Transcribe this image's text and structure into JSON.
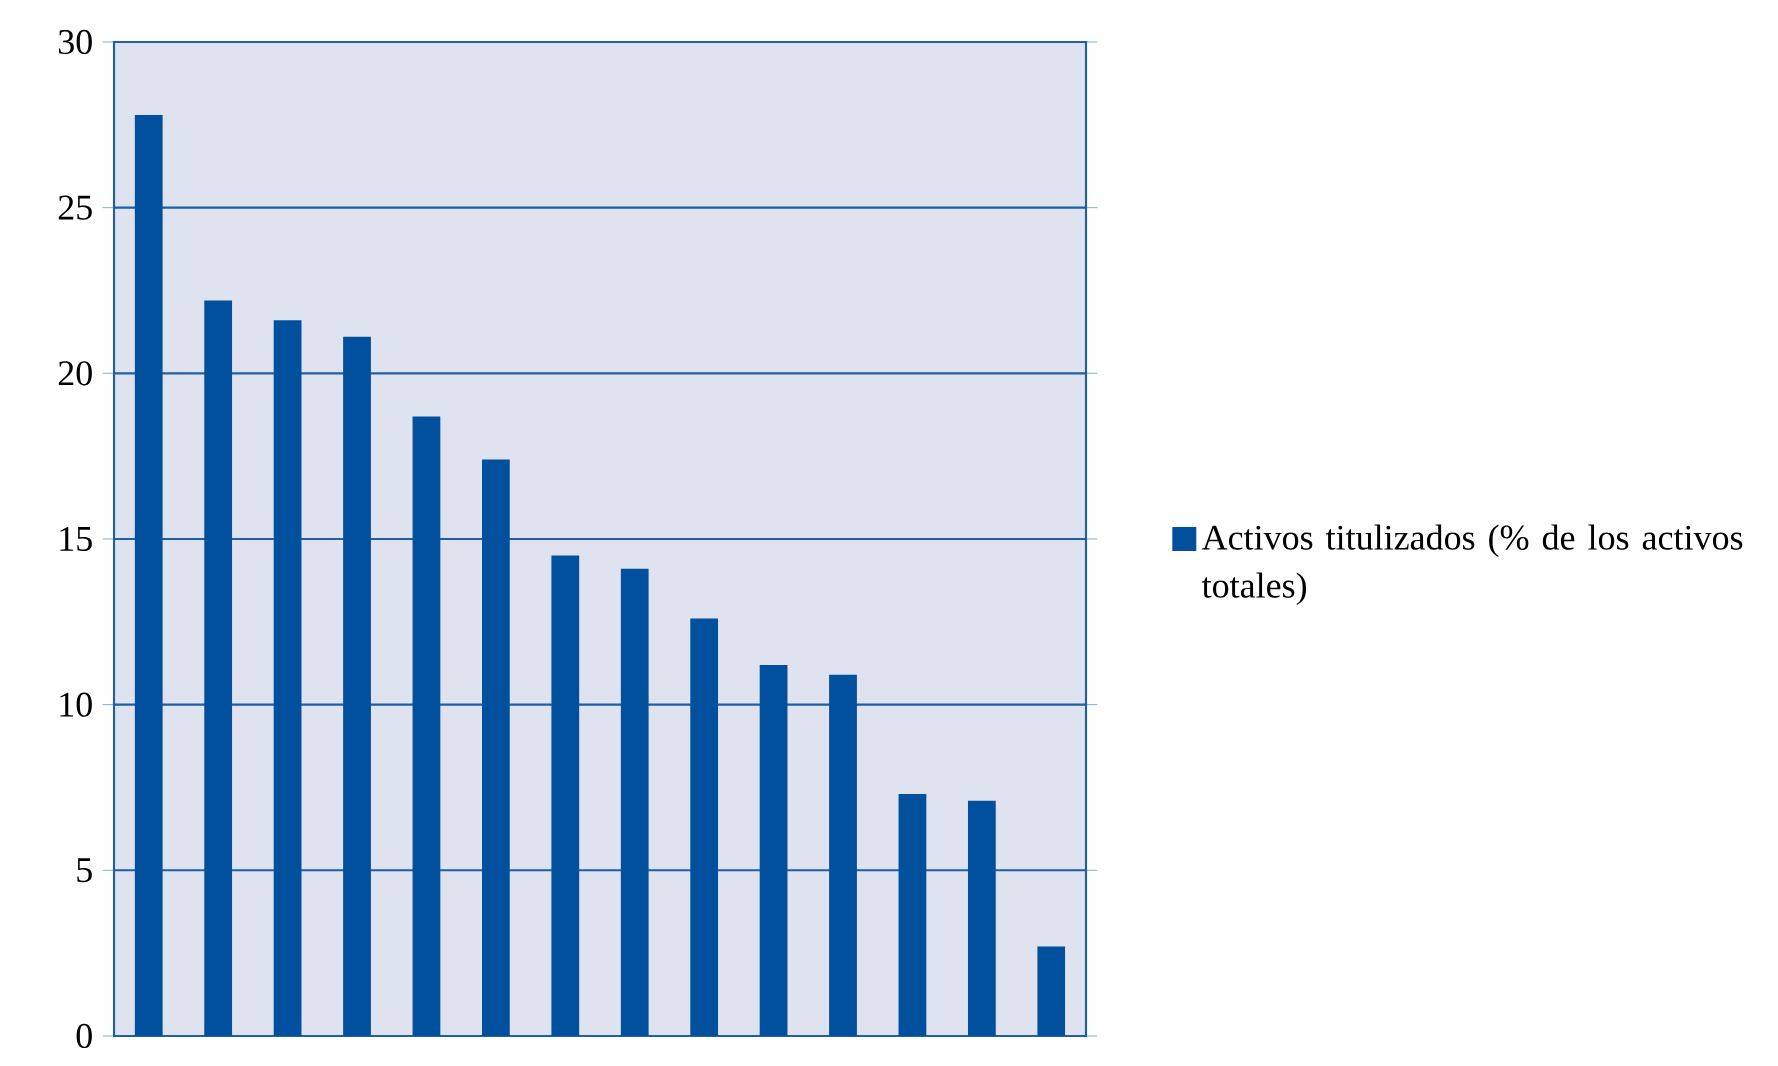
{
  "chart_data": {
    "type": "bar",
    "categories": [
      null,
      null,
      null,
      null,
      null,
      null,
      null,
      null,
      null,
      null,
      null,
      null,
      null,
      null
    ],
    "series": [
      {
        "name": "Activos titulizados (% de los activos  totales)",
        "color": "#00509e",
        "values": [
          27.8,
          22.2,
          21.6,
          21.1,
          18.7,
          17.4,
          14.5,
          14.1,
          12.6,
          11.2,
          10.9,
          7.3,
          7.1,
          2.7
        ]
      }
    ],
    "ylim": [
      0,
      30
    ],
    "yticks": [
      0,
      5,
      10,
      15,
      20,
      25,
      30
    ],
    "grid": "y",
    "legend": "right"
  }
}
